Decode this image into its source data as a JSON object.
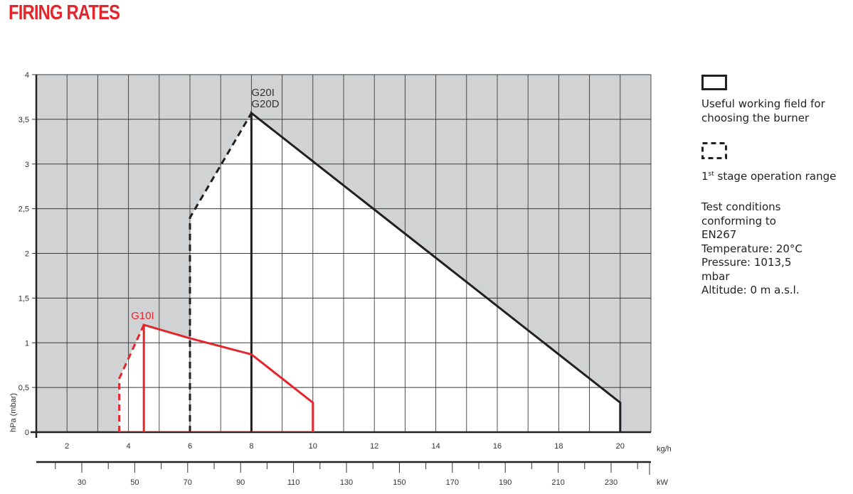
{
  "title": "FIRING RATES",
  "legend": {
    "solid_label": "Useful working field for choosing the burner",
    "dashed_sup": "st",
    "dashed_prefix": "1",
    "dashed_label": " stage operation range",
    "conditions": [
      "Test conditions",
      "conforming to",
      "EN267",
      "Temperature: 20°C",
      "Pressure: 1013,5",
      "mbar",
      "Altitude: 0 m a.s.l."
    ]
  },
  "chart_data": {
    "type": "line",
    "title": "FIRING RATES",
    "xlabel": "kg/h",
    "x2label": "kW",
    "ylabel": "hPa (mbar)",
    "xlim": [
      1,
      21
    ],
    "ylim": [
      0,
      4
    ],
    "x_ticks": [
      2,
      4,
      6,
      8,
      10,
      12,
      14,
      16,
      18,
      20
    ],
    "x2_ticks": [
      30,
      50,
      70,
      90,
      110,
      130,
      150,
      170,
      190,
      210,
      230
    ],
    "y_ticks": [
      0,
      0.5,
      1,
      1.5,
      2,
      2.5,
      3,
      3.5,
      4
    ],
    "y_tick_labels": [
      "0",
      "0,5",
      "1",
      "1,5",
      "2",
      "2,5",
      "3",
      "3,5",
      "4"
    ],
    "grid": true,
    "outside_field_color": "#d1d2d4",
    "series": [
      {
        "name": "G20I G20D",
        "label_lines": [
          "G20I",
          "G20D"
        ],
        "color": "#231f20",
        "first_stage": [
          [
            6,
            0
          ],
          [
            6,
            2.4
          ],
          [
            8,
            3.57
          ]
        ],
        "working_field": [
          [
            8,
            0
          ],
          [
            8,
            3.57
          ],
          [
            20,
            0.33
          ],
          [
            20,
            0
          ]
        ]
      },
      {
        "name": "G10I",
        "label_lines": [
          "G10I"
        ],
        "color": "#e3262c",
        "first_stage": [
          [
            3.7,
            0
          ],
          [
            3.7,
            0.6
          ],
          [
            4.5,
            1.2
          ]
        ],
        "working_field": [
          [
            4.5,
            0
          ],
          [
            4.5,
            1.2
          ],
          [
            6,
            1.05
          ],
          [
            8,
            0.87
          ],
          [
            10,
            0.33
          ],
          [
            10,
            0
          ]
        ]
      }
    ]
  }
}
